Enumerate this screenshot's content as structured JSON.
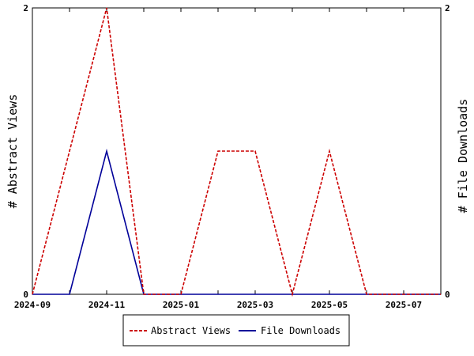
{
  "chart_data": {
    "type": "line",
    "x": [
      "2024-09",
      "2024-10",
      "2024-11",
      "2024-12",
      "2025-01",
      "2025-02",
      "2025-03",
      "2025-04",
      "2025-05",
      "2025-06",
      "2025-07",
      "2025-08"
    ],
    "x_tick_labels": [
      "2024-09",
      "2024-11",
      "2025-01",
      "2025-03",
      "2025-05",
      "2025-07"
    ],
    "series": [
      {
        "name": "Abstract Views",
        "axis": "left",
        "color": "#cc0000",
        "dash": "dashed",
        "values": [
          0,
          1,
          2,
          0,
          0,
          1,
          1,
          0,
          1,
          0,
          0,
          0
        ]
      },
      {
        "name": "File Downloads",
        "axis": "right",
        "color": "#000099",
        "dash": "solid",
        "values": [
          0,
          0,
          1,
          0,
          0,
          0,
          0,
          0,
          0,
          0,
          0,
          0
        ]
      }
    ],
    "ylabel_left": "# Abstract Views",
    "ylabel_right": "# File Downloads",
    "ylim_left": [
      0,
      2
    ],
    "ylim_right": [
      0,
      2
    ],
    "y_tick_labels_left": [
      "0",
      "2"
    ],
    "y_tick_labels_right": [
      "0",
      "2"
    ],
    "legend": "bottom-center",
    "grid": false
  }
}
